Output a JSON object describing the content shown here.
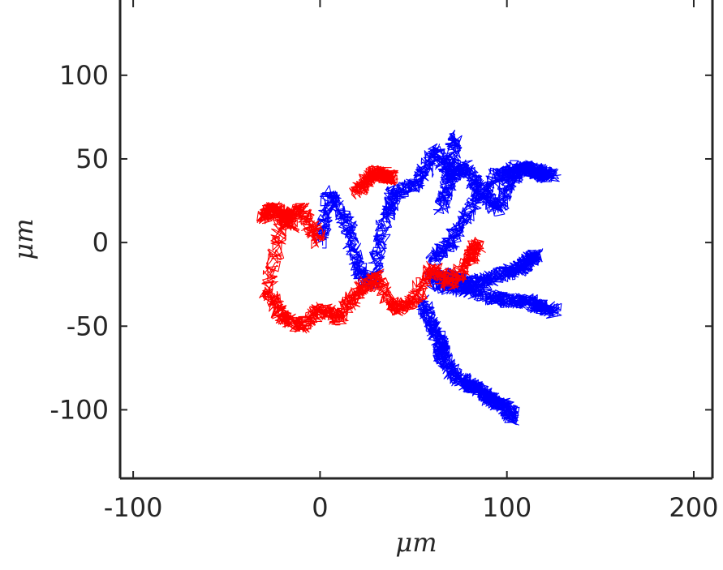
{
  "chart_data": {
    "type": "line",
    "title": "",
    "xlabel": "μm",
    "ylabel": "μm",
    "xlim": [
      -107,
      210
    ],
    "ylim": [
      -141,
      145
    ],
    "xticks": [
      -100,
      0,
      100,
      200
    ],
    "yticks": [
      -100,
      -50,
      0,
      50,
      100
    ],
    "xtick_labels": [
      "-100",
      "0",
      "100",
      "200"
    ],
    "ytick_labels": [
      "-100",
      "-50",
      "0",
      "50",
      "100"
    ],
    "grid": false,
    "legend": "none",
    "series": [
      {
        "color": "#0000ff",
        "x": [
          0,
          5,
          15,
          20,
          28,
          35,
          40,
          52,
          62,
          70,
          78,
          86,
          95,
          103,
          112,
          118,
          125
        ],
        "y": [
          0,
          30,
          10,
          -15,
          -25,
          15,
          30,
          35,
          55,
          40,
          45,
          30,
          20,
          40,
          45,
          42,
          40
        ],
        "branches": [
          {
            "x": [
              60,
              70,
              80,
              95,
              105,
              115,
              120
            ],
            "y": [
              -10,
              0,
              20,
              40,
              45,
              42,
              40
            ]
          },
          {
            "x": [
              60,
              70,
              80,
              90,
              100,
              108,
              112,
              115
            ],
            "y": [
              -20,
              -20,
              -25,
              -22,
              -18,
              -15,
              -10,
              -8
            ]
          },
          {
            "x": [
              60,
              75,
              90,
              100,
              110,
              118,
              125
            ],
            "y": [
              -25,
              -28,
              -32,
              -35,
              -35,
              -38,
              -41
            ]
          },
          {
            "x": [
              55,
              60,
              65,
              65,
              72,
              80,
              85,
              90,
              95,
              100,
              103
            ],
            "y": [
              -35,
              -50,
              -60,
              -68,
              -80,
              -85,
              -88,
              -93,
              -96,
              -98,
              -105
            ]
          },
          {
            "x": [
              65,
              70,
              72
            ],
            "y": [
              20,
              40,
              65
            ]
          }
        ]
      },
      {
        "color": "#ff0000",
        "x": [
          0,
          -10,
          -20,
          -28,
          -20,
          -10,
          0,
          10,
          20,
          30,
          40,
          50,
          60,
          70,
          80,
          85
        ],
        "y": [
          0,
          20,
          15,
          -30,
          -45,
          -50,
          -40,
          -45,
          -30,
          -20,
          -40,
          -35,
          -15,
          -25,
          -10,
          0
        ],
        "branches": [
          {
            "x": [
              20,
              25,
              30,
              35,
              38
            ],
            "y": [
              30,
              38,
              42,
              40,
              38
            ]
          },
          {
            "x": [
              -30,
              -25,
              -20,
              -15
            ],
            "y": [
              15,
              20,
              18,
              10
            ]
          }
        ]
      }
    ]
  }
}
